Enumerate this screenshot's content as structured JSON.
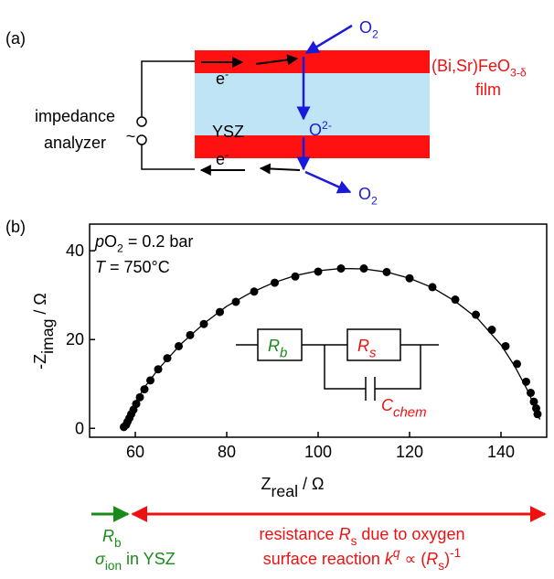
{
  "chart_data": {
    "type": "scatter",
    "xlim": [
      50,
      150
    ],
    "xticks": [
      60,
      80,
      100,
      120,
      140
    ],
    "ylim": [
      -2,
      46
    ],
    "yticks": [
      0,
      20,
      40
    ],
    "xlabel": [
      {
        "text": "Z"
      },
      {
        "text": "real",
        "style": "sub"
      },
      {
        "text": " / Ω"
      }
    ],
    "ylabel": [
      {
        "text": "-Z"
      },
      {
        "text": "imag",
        "style": "sub"
      },
      {
        "text": " / Ω"
      }
    ],
    "series": [
      {
        "mode": "markers",
        "color": "#000000",
        "x": [
          57.5,
          58,
          58.3,
          58.7,
          59.1,
          59.6,
          60.2,
          61,
          62,
          63.3,
          65,
          67,
          69.5,
          72,
          75,
          78.5,
          82,
          86,
          90.5,
          95,
          100,
          105,
          110,
          115,
          120,
          125,
          130,
          134.5,
          138,
          141,
          143.5,
          145.5,
          146.5,
          147.2,
          147.7,
          148
        ],
        "values": [
          0.3,
          0.8,
          1.5,
          2.3,
          3.2,
          4.2,
          5.5,
          7,
          8.8,
          10.8,
          13.3,
          15.8,
          18.5,
          21,
          23.5,
          26.2,
          28.5,
          30.8,
          32.8,
          34.2,
          35.3,
          36,
          36,
          35.2,
          33.8,
          31.8,
          29,
          25.6,
          22.2,
          18.5,
          14.5,
          10.5,
          8,
          6,
          4.5,
          3.2
        ]
      },
      {
        "mode": "line",
        "color": "#000000",
        "x": [
          57.5,
          58,
          59,
          60,
          62,
          65,
          70,
          75,
          80,
          85,
          90,
          95,
          100,
          105,
          110,
          115,
          120,
          125,
          130,
          135,
          140,
          143,
          146,
          147.5,
          148.5
        ],
        "values": [
          0,
          1.5,
          3.8,
          5.8,
          9.2,
          13.3,
          19,
          23.6,
          27.5,
          30.4,
          32.7,
          34.4,
          35.5,
          36,
          35.9,
          35.2,
          33.8,
          31.7,
          28.6,
          24.6,
          18.8,
          14,
          8.2,
          4.5,
          2
        ]
      }
    ],
    "annotations": [
      {
        "color": "#000000",
        "segments": [
          {
            "text": "(a)"
          }
        ]
      },
      {
        "color": "#1a1adb",
        "segments": [
          {
            "text": "O"
          },
          {
            "text": "2",
            "style": "sub"
          }
        ]
      },
      {
        "color": "#000000",
        "segments": [
          {
            "text": "e"
          },
          {
            "text": "-",
            "style": "sup"
          }
        ]
      },
      {
        "color": "#000000",
        "segments": [
          {
            "text": "impedance"
          }
        ]
      },
      {
        "color": "#000000",
        "segments": [
          {
            "text": "analyzer"
          }
        ]
      },
      {
        "color": "#000000",
        "segments": [
          {
            "text": "~"
          }
        ]
      },
      {
        "color": "#000000",
        "segments": [
          {
            "text": "YSZ"
          }
        ]
      },
      {
        "color": "#1a1adb",
        "segments": [
          {
            "text": "O"
          },
          {
            "text": "2-",
            "style": "sup"
          }
        ]
      },
      {
        "color": "#ee1111",
        "segments": [
          {
            "text": "(Bi,Sr)FeO"
          },
          {
            "text": "3-δ",
            "style": "sub"
          }
        ]
      },
      {
        "color": "#ee1111",
        "segments": [
          {
            "text": "film"
          }
        ]
      },
      {
        "color": "#000000",
        "segments": [
          {
            "text": "e"
          },
          {
            "text": "-",
            "style": "sup"
          }
        ]
      },
      {
        "color": "#1a1adb",
        "segments": [
          {
            "text": "O"
          },
          {
            "text": "2",
            "style": "sub"
          }
        ]
      },
      {
        "color": "#000000",
        "segments": [
          {
            "text": "(b)"
          }
        ]
      },
      {
        "color": "#000000",
        "segments": [
          {
            "text": "p",
            "style": "i"
          },
          {
            "text": "O"
          },
          {
            "text": "2",
            "style": "sub"
          },
          {
            "text": " = 0.2 bar"
          }
        ]
      },
      {
        "color": "#000000",
        "segments": [
          {
            "text": "T",
            "style": "i"
          },
          {
            "text": " = 750°C"
          }
        ]
      },
      {
        "color": "#1a8a1a",
        "segments": [
          {
            "text": "R",
            "style": "i"
          },
          {
            "text": "b",
            "style": "isub"
          }
        ]
      },
      {
        "color": "#ee1111",
        "segments": [
          {
            "text": "R",
            "style": "i"
          },
          {
            "text": "s",
            "style": "isub"
          }
        ]
      },
      {
        "color": "#ee1111",
        "segments": [
          {
            "text": "C",
            "style": "i"
          },
          {
            "text": "chem",
            "style": "isub"
          }
        ]
      },
      {
        "color": "#1a8a1a",
        "segments": [
          {
            "text": "R",
            "style": "i"
          },
          {
            "text": "b",
            "style": "sub"
          }
        ]
      },
      {
        "color": "#1a8a1a",
        "segments": [
          {
            "text": "σ",
            "style": "i"
          },
          {
            "text": "ion",
            "style": "sub"
          },
          {
            "text": " in YSZ"
          }
        ]
      },
      {
        "color": "#ee1111",
        "segments": [
          {
            "text": "resistance "
          },
          {
            "text": "R",
            "style": "i"
          },
          {
            "text": "s",
            "style": "sub"
          },
          {
            "text": " due to oxygen"
          }
        ]
      },
      {
        "color": "#ee1111",
        "segments": [
          {
            "text": "surface reaction  "
          },
          {
            "text": "k",
            "style": "i"
          },
          {
            "text": "q",
            "style": "isup"
          },
          {
            "text": " ∝ ("
          },
          {
            "text": "R",
            "style": "i"
          },
          {
            "text": "s",
            "style": "sub"
          },
          {
            "text": ")"
          },
          {
            "text": "-1",
            "style": "sup"
          }
        ]
      }
    ]
  }
}
